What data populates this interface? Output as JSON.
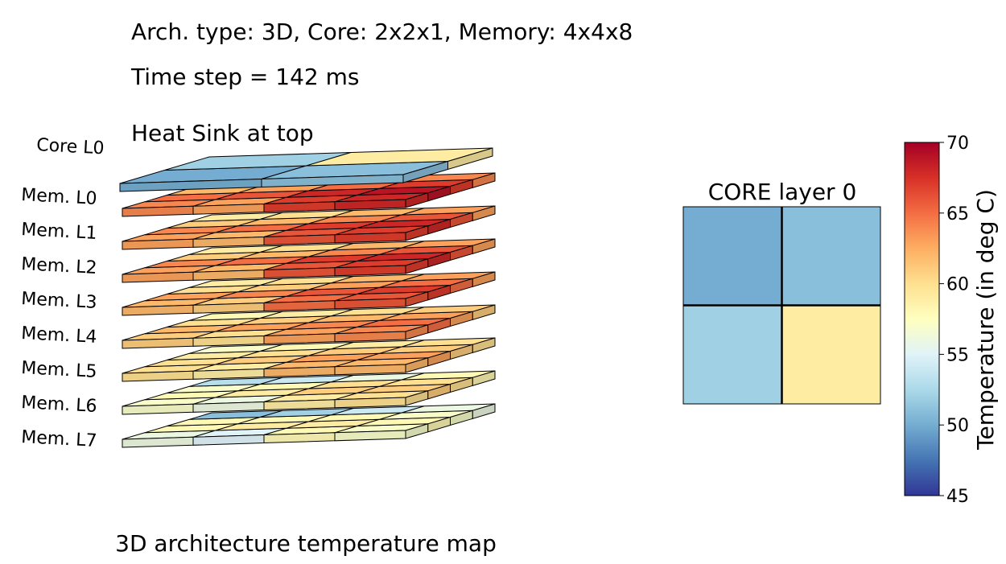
{
  "header": {
    "line1": "Arch. type: 3D, Core: 2x2x1, Memory: 4x4x8",
    "line2": "Time step = 142 ms",
    "line3": "Heat Sink at top"
  },
  "chart_data": [
    {
      "type": "heatmap",
      "title": "3D architecture temperature map",
      "projection": "3d-stacked",
      "layers": [
        {
          "label": "Mem. L0",
          "grid": [
            [
              64,
              63,
              67,
              68
            ],
            [
              65,
              66,
              68,
              69
            ],
            [
              62,
              63,
              65,
              67
            ],
            [
              60,
              61,
              63,
              64
            ]
          ]
        },
        {
          "label": "Mem. L1",
          "grid": [
            [
              63,
              62,
              66,
              67
            ],
            [
              64,
              65,
              67,
              68
            ],
            [
              61,
              62,
              64,
              66
            ],
            [
              59,
              60,
              62,
              63
            ]
          ]
        },
        {
          "label": "Mem. L2",
          "grid": [
            [
              63,
              62,
              66,
              67
            ],
            [
              64,
              65,
              67,
              68
            ],
            [
              61,
              62,
              64,
              66
            ],
            [
              59,
              60,
              62,
              63
            ]
          ]
        },
        {
          "label": "Mem. L3",
          "grid": [
            [
              62,
              61,
              65,
              66
            ],
            [
              63,
              64,
              66,
              67
            ],
            [
              60,
              61,
              63,
              65
            ],
            [
              59,
              60,
              62,
              63
            ]
          ]
        },
        {
          "label": "Mem. L4",
          "grid": [
            [
              61,
              60,
              63,
              64
            ],
            [
              62,
              63,
              64,
              65
            ],
            [
              60,
              61,
              62,
              63
            ],
            [
              58,
              59,
              60,
              61
            ]
          ]
        },
        {
          "label": "Mem. L5",
          "grid": [
            [
              60,
              59,
              62,
              62
            ],
            [
              60,
              61,
              63,
              63
            ],
            [
              59,
              60,
              61,
              61
            ],
            [
              57,
              58,
              59,
              60
            ]
          ]
        },
        {
          "label": "Mem. L6",
          "grid": [
            [
              57,
              56,
              59,
              60
            ],
            [
              58,
              59,
              61,
              61
            ],
            [
              57,
              58,
              60,
              60
            ],
            [
              53,
              54,
              56,
              58
            ]
          ]
        },
        {
          "label": "Mem. L7",
          "grid": [
            [
              56,
              55,
              58,
              57
            ],
            [
              58,
              59,
              59,
              58
            ],
            [
              58,
              58,
              58,
              57
            ],
            [
              51,
              52,
              54,
              56
            ]
          ]
        },
        {
          "label": "Core  L0",
          "grid": [
            [
              50,
              51
            ],
            [
              52,
              59
            ]
          ]
        }
      ]
    },
    {
      "type": "heatmap",
      "title": "CORE layer 0",
      "grid": [
        [
          50,
          51
        ],
        [
          52,
          59
        ]
      ],
      "colorbar": {
        "label": "Temperature (in deg C)",
        "min": 45,
        "max": 70,
        "ticks": [
          "45",
          "50",
          "55",
          "60",
          "65",
          "70"
        ],
        "colormap": "RdYlBu_r"
      }
    }
  ]
}
